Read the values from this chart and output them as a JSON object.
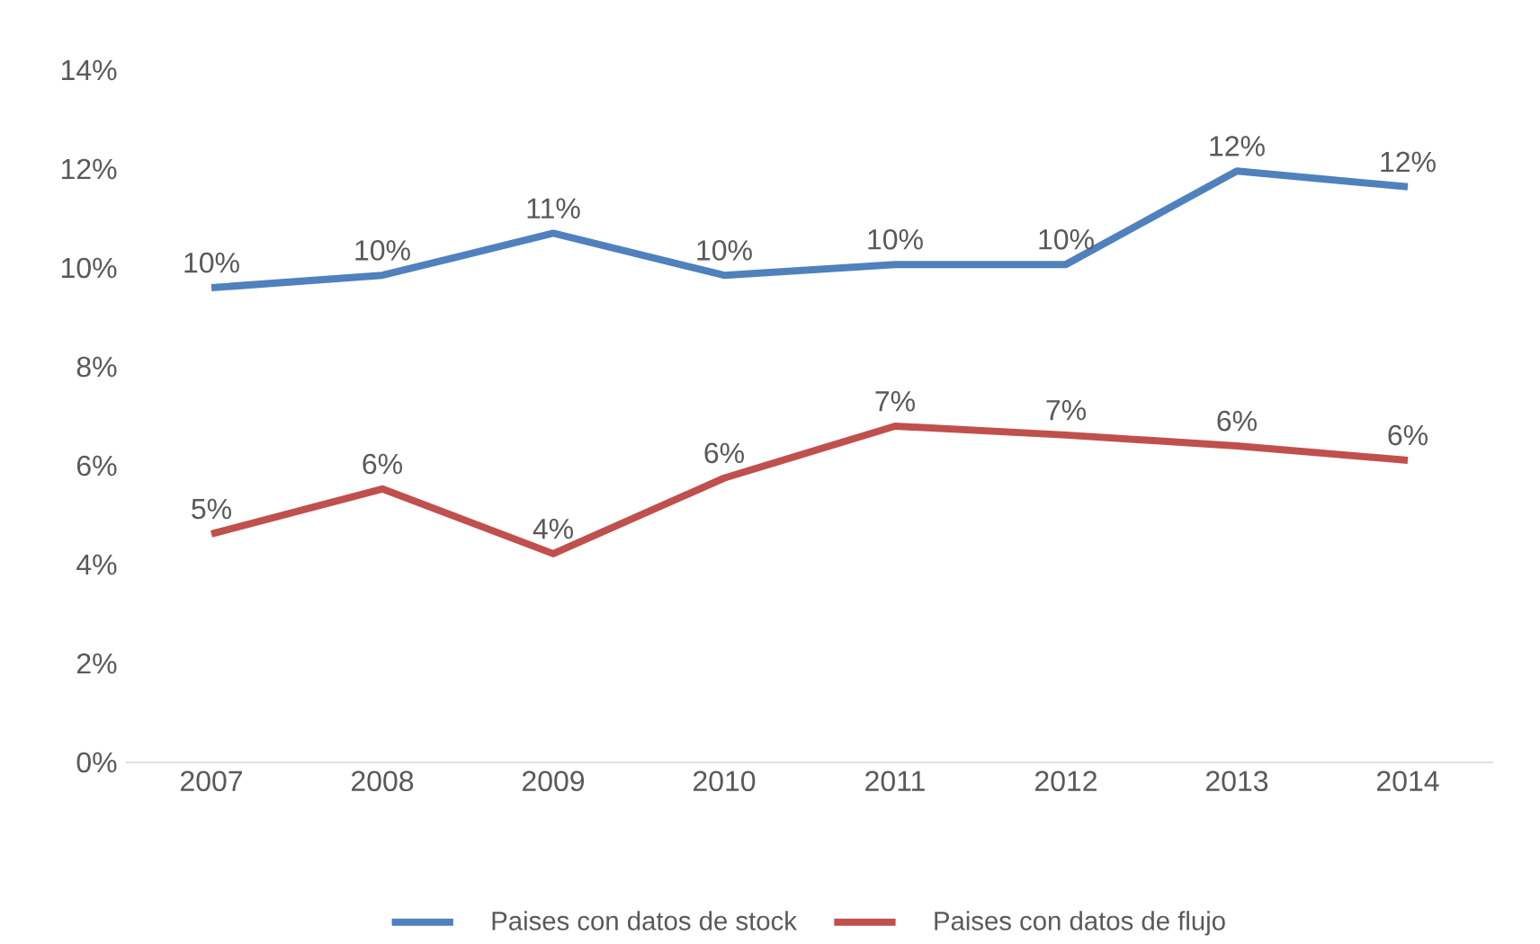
{
  "chart_data": {
    "type": "line",
    "categories": [
      "2007",
      "2008",
      "2009",
      "2010",
      "2011",
      "2012",
      "2013",
      "2014"
    ],
    "series": [
      {
        "name": "Paises con datos de stock",
        "color": "#4f81bd",
        "values": [
          9.6,
          9.85,
          10.7,
          9.85,
          10.07,
          10.07,
          11.96,
          11.64
        ],
        "value_labels": [
          "10%",
          "10%",
          "11%",
          "10%",
          "10%",
          "10%",
          "12%",
          "12%"
        ]
      },
      {
        "name": "Paises con datos de flujo",
        "color": "#c0504d",
        "values": [
          4.62,
          5.53,
          4.22,
          5.75,
          6.8,
          6.62,
          6.4,
          6.11
        ],
        "value_labels": [
          "5%",
          "6%",
          "4%",
          "6%",
          "7%",
          "7%",
          "6%",
          "6%"
        ]
      }
    ],
    "ylim": [
      0,
      14
    ],
    "yticks": [
      {
        "value": 0,
        "label": "0%"
      },
      {
        "value": 2,
        "label": "2%"
      },
      {
        "value": 4,
        "label": "4%"
      },
      {
        "value": 6,
        "label": "6%"
      },
      {
        "value": 8,
        "label": "8%"
      },
      {
        "value": 10,
        "label": "10%"
      },
      {
        "value": 12,
        "label": "12%"
      },
      {
        "value": 14,
        "label": "14%"
      }
    ],
    "grid": false,
    "legend": "bottom",
    "marker": "none",
    "line_style": "solid"
  }
}
